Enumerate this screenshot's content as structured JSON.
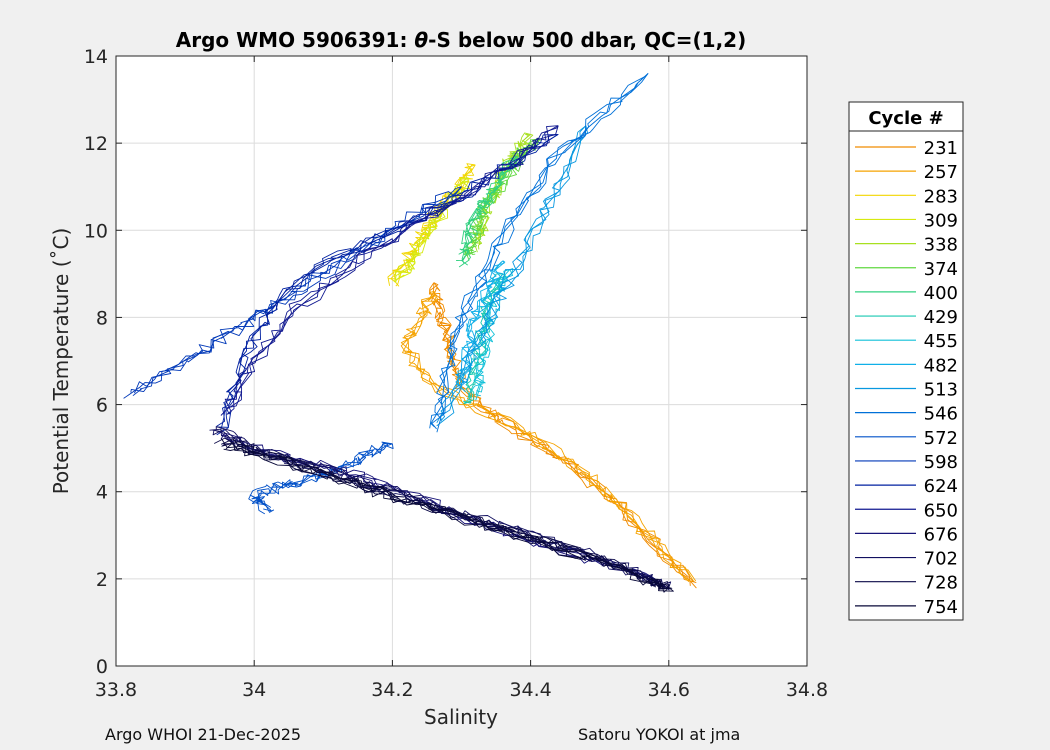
{
  "chart_data": {
    "type": "line",
    "title_prefix": "Argo WMO 5906391: ",
    "title_theta": "θ",
    "title_suffix": "-S below 500 dbar,  QC=(1,2)",
    "xlabel": "Salinity",
    "ylabel": "Potential Temperature (˚C)",
    "xlim": [
      33.8,
      34.8
    ],
    "ylim": [
      0,
      14
    ],
    "xticks": [
      33.8,
      34.0,
      34.2,
      34.4,
      34.6,
      34.8
    ],
    "xtick_labels": [
      "33.8",
      "34",
      "34.2",
      "34.4",
      "34.6",
      "34.8"
    ],
    "yticks": [
      0,
      2,
      4,
      6,
      8,
      10,
      12,
      14
    ],
    "ytick_labels": [
      "0",
      "2",
      "4",
      "6",
      "8",
      "10",
      "12",
      "14"
    ],
    "grid": true,
    "legend_title": "Cycle #",
    "legend_position": "right-outside",
    "series": [
      {
        "name": "231",
        "color": "#f08c00",
        "x": [
          34.64,
          34.58,
          34.52,
          34.46,
          34.4,
          34.34,
          34.3,
          34.29,
          34.28,
          34.27,
          34.26
        ],
        "y": [
          1.9,
          2.8,
          3.8,
          4.6,
          5.2,
          5.8,
          6.4,
          7.0,
          7.6,
          8.2,
          8.8
        ]
      },
      {
        "name": "257",
        "color": "#f5a300",
        "x": [
          34.63,
          34.57,
          34.51,
          34.45,
          34.38,
          34.3,
          34.24,
          34.22,
          34.24,
          34.26
        ],
        "y": [
          2.0,
          3.0,
          4.0,
          4.8,
          5.5,
          6.1,
          6.7,
          7.4,
          8.0,
          8.6
        ]
      },
      {
        "name": "283",
        "color": "#f2d600",
        "x": [
          34.2,
          34.22,
          34.24,
          34.26,
          34.28,
          34.3,
          34.32
        ],
        "y": [
          8.8,
          9.3,
          9.8,
          10.3,
          10.7,
          11.1,
          11.5
        ]
      },
      {
        "name": "309",
        "color": "#d6ea10",
        "x": [
          34.21,
          34.23,
          34.25,
          34.27,
          34.29,
          34.31
        ],
        "y": [
          8.9,
          9.4,
          9.9,
          10.4,
          10.8,
          11.2
        ]
      },
      {
        "name": "338",
        "color": "#a8e020",
        "x": [
          34.32,
          34.33,
          34.34,
          34.35,
          34.36,
          34.38,
          34.4
        ],
        "y": [
          9.6,
          10.1,
          10.6,
          11.0,
          11.4,
          11.8,
          12.2
        ]
      },
      {
        "name": "374",
        "color": "#60d840",
        "x": [
          34.31,
          34.32,
          34.33,
          34.35,
          34.37,
          34.39,
          34.41
        ],
        "y": [
          9.4,
          9.9,
          10.4,
          10.9,
          11.4,
          11.8,
          12.1
        ]
      },
      {
        "name": "400",
        "color": "#30d080",
        "x": [
          34.3,
          34.31,
          34.32,
          34.34,
          34.36,
          34.38
        ],
        "y": [
          9.2,
          9.8,
          10.3,
          10.8,
          11.3,
          11.7
        ]
      },
      {
        "name": "429",
        "color": "#18c8b0",
        "x": [
          34.31,
          34.32,
          34.33,
          34.34,
          34.36
        ],
        "y": [
          6.0,
          6.8,
          7.6,
          8.4,
          9.0
        ]
      },
      {
        "name": "455",
        "color": "#10c0d8",
        "x": [
          34.32,
          34.33,
          34.34,
          34.35,
          34.37
        ],
        "y": [
          6.2,
          7.0,
          7.8,
          8.5,
          9.1
        ]
      },
      {
        "name": "482",
        "color": "#10b0e8",
        "x": [
          34.3,
          34.31,
          34.32,
          34.34,
          34.36
        ],
        "y": [
          6.4,
          7.2,
          8.0,
          8.7,
          9.3
        ]
      },
      {
        "name": "513",
        "color": "#0898e0",
        "x": [
          34.27,
          34.3,
          34.33,
          34.36,
          34.4,
          34.44,
          34.48
        ],
        "y": [
          5.6,
          6.6,
          7.6,
          8.6,
          9.8,
          11.0,
          12.4
        ]
      },
      {
        "name": "546",
        "color": "#0070d8",
        "x": [
          34.26,
          34.28,
          34.3,
          34.34,
          34.38,
          34.43,
          34.5,
          34.57
        ],
        "y": [
          5.4,
          6.8,
          8.0,
          9.2,
          10.4,
          11.6,
          12.6,
          13.6
        ]
      },
      {
        "name": "572",
        "color": "#0050c8",
        "x": [
          34.02,
          34.0,
          34.04,
          34.08,
          34.12,
          34.16,
          34.2
        ],
        "y": [
          3.6,
          3.9,
          4.1,
          4.3,
          4.5,
          4.8,
          5.1
        ]
      },
      {
        "name": "598",
        "color": "#0038b8",
        "x": [
          33.82,
          33.88,
          33.94,
          34.0,
          34.06,
          34.12,
          34.18,
          34.24,
          34.3
        ],
        "y": [
          6.2,
          6.8,
          7.4,
          8.0,
          8.6,
          9.2,
          9.8,
          10.4,
          11.0
        ]
      },
      {
        "name": "624",
        "color": "#0020a0",
        "x": [
          33.95,
          33.97,
          34.0,
          34.05,
          34.12,
          34.2,
          34.28,
          34.36,
          34.44
        ],
        "y": [
          5.4,
          6.4,
          7.6,
          8.6,
          9.4,
          10.0,
          10.6,
          11.4,
          12.2
        ]
      },
      {
        "name": "650",
        "color": "#101890",
        "x": [
          33.96,
          34.0,
          34.06,
          34.14,
          34.22,
          34.3,
          34.38,
          34.44
        ],
        "y": [
          5.8,
          7.0,
          8.2,
          9.2,
          10.0,
          10.8,
          11.6,
          12.4
        ]
      },
      {
        "name": "676",
        "color": "#181478",
        "x": [
          33.95,
          34.02,
          34.1,
          34.18,
          34.26,
          34.34,
          34.42,
          34.5,
          34.58
        ],
        "y": [
          5.3,
          4.9,
          4.6,
          4.2,
          3.7,
          3.2,
          2.8,
          2.4,
          2.0
        ]
      },
      {
        "name": "702",
        "color": "#121060",
        "x": [
          33.94,
          34.0,
          34.08,
          34.16,
          34.24,
          34.32,
          34.4,
          34.48,
          34.56,
          34.6
        ],
        "y": [
          5.5,
          5.0,
          4.6,
          4.2,
          3.8,
          3.4,
          3.0,
          2.6,
          2.1,
          1.8
        ]
      },
      {
        "name": "728",
        "color": "#0c0a48",
        "x": [
          33.95,
          34.01,
          34.09,
          34.17,
          34.25,
          34.33,
          34.41,
          34.49,
          34.57,
          34.6
        ],
        "y": [
          5.2,
          4.9,
          4.5,
          4.1,
          3.7,
          3.3,
          2.9,
          2.5,
          2.0,
          1.8
        ]
      },
      {
        "name": "754",
        "color": "#080838",
        "x": [
          33.96,
          34.02,
          34.1,
          34.18,
          34.26,
          34.34,
          34.42,
          34.5,
          34.58,
          34.6
        ],
        "y": [
          5.1,
          4.8,
          4.4,
          4.0,
          3.6,
          3.2,
          2.8,
          2.4,
          1.9,
          1.8
        ]
      }
    ]
  },
  "footer": {
    "left": "Argo WHOI 21-Dec-2025",
    "right": "Satoru YOKOI at jma"
  }
}
